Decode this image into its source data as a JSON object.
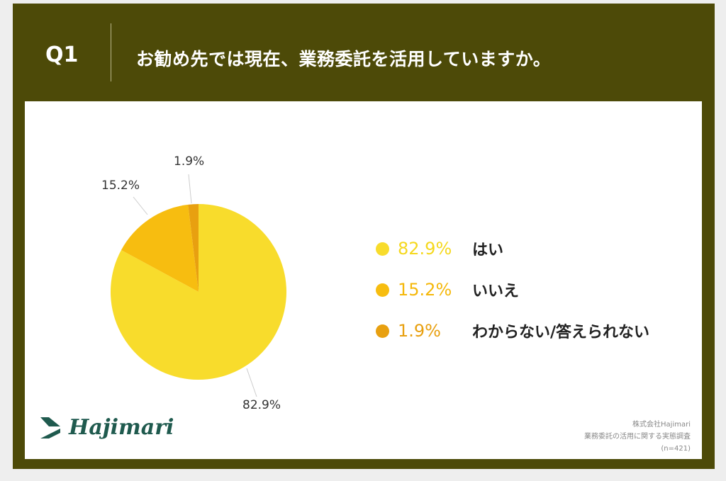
{
  "header": {
    "question_no": "Q1",
    "title": "お勧め先では現在、業務委託を活用していますか。"
  },
  "colors": {
    "frame": "#4d4a08",
    "yes": "#f8dc2c",
    "no": "#f7bd10",
    "unknown": "#e8a010"
  },
  "chart_data": {
    "type": "pie",
    "title": "お勧め先では現在、業務委託を活用していますか。",
    "slices": [
      {
        "label": "はい",
        "value": 82.9,
        "value_label": "82.9%",
        "color": "#f8dc2c"
      },
      {
        "label": "いいえ",
        "value": 15.2,
        "value_label": "15.2%",
        "color": "#f7bd10"
      },
      {
        "label": "わからない/答えられない",
        "value": 1.9,
        "value_label": "1.9%",
        "color": "#e8a010"
      }
    ],
    "legend_placement": "right"
  },
  "footer": {
    "logo": "Hajimari",
    "source_lines": [
      "株式会社Hajimari",
      "業務委託の活用に関する実態調査",
      "(n=421)"
    ]
  }
}
